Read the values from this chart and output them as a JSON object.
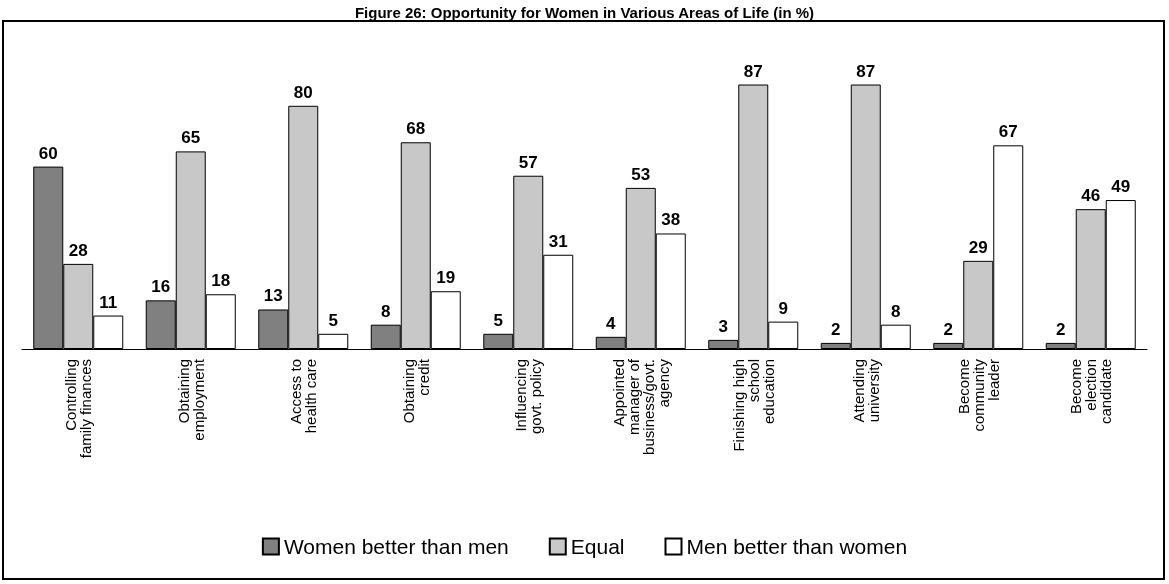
{
  "chart_data": {
    "type": "bar",
    "title": "Figure 26: Opportunity for Women in Various Areas of Life (in %)",
    "categories": [
      "Controlling\nfamily finances",
      "Obtaining\nemployment",
      "Access to\nhealth care",
      "Obtaining\ncredit",
      "Influencing\ngovt. policy",
      "Appointed\nmanager of\nbusiness/govt.\nagency",
      "Finishing high\nschool\neducation",
      "Attending\nuniversity",
      "Become\ncommunity\nleader",
      "Become\nelection\ncandidate"
    ],
    "series": [
      {
        "name": "Women better than men",
        "color": "#808080",
        "values": [
          60,
          16,
          13,
          8,
          5,
          4,
          3,
          2,
          2,
          2
        ]
      },
      {
        "name": "Equal",
        "color": "#c8c8c8",
        "values": [
          28,
          65,
          80,
          68,
          57,
          53,
          87,
          87,
          29,
          46
        ]
      },
      {
        "name": "Men better than women",
        "color": "#ffffff",
        "values": [
          11,
          18,
          5,
          19,
          31,
          38,
          9,
          8,
          67,
          49
        ]
      }
    ],
    "data_labels": true,
    "legend": "bottom"
  }
}
